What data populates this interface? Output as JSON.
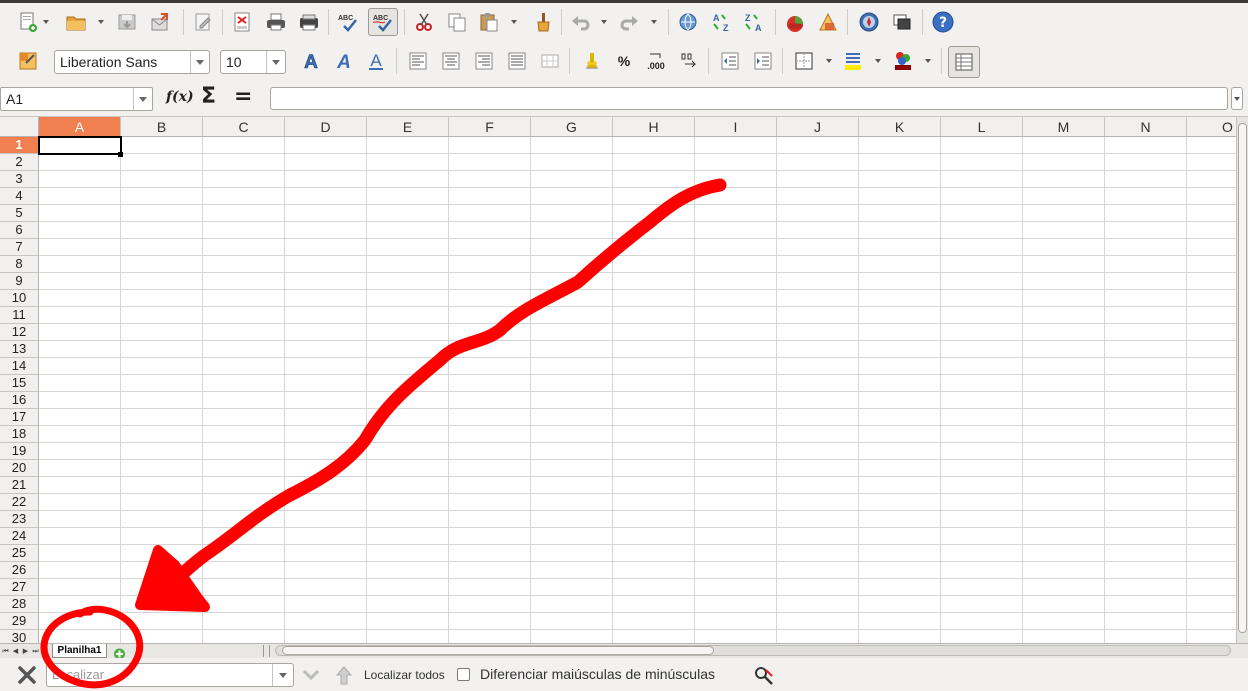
{
  "toolbar_standard": {
    "items": [
      {
        "name": "new-document",
        "icon": "new-document-icon"
      },
      {
        "name": "open",
        "icon": "folder-open-icon"
      },
      {
        "name": "save",
        "icon": "save-icon"
      },
      {
        "name": "email",
        "icon": "email-document-icon"
      },
      {
        "name": "edit-mode",
        "icon": "edit-file-icon"
      },
      {
        "name": "export-pdf",
        "icon": "pdf-icon"
      },
      {
        "name": "print",
        "icon": "printer-icon"
      },
      {
        "name": "print-direct",
        "icon": "printer-direct-icon"
      },
      {
        "name": "spellcheck",
        "icon": "spellcheck-icon"
      },
      {
        "name": "autospell",
        "icon": "autospellcheck-icon"
      },
      {
        "name": "cut",
        "icon": "scissors-icon"
      },
      {
        "name": "copy",
        "icon": "copy-icon"
      },
      {
        "name": "paste",
        "icon": "paste-icon"
      },
      {
        "name": "clone-format",
        "icon": "paintbrush-icon"
      },
      {
        "name": "undo",
        "icon": "undo-icon"
      },
      {
        "name": "redo",
        "icon": "redo-icon"
      },
      {
        "name": "hyperlink",
        "icon": "globe-link-icon"
      },
      {
        "name": "sort-asc",
        "icon": "sort-ascending-icon"
      },
      {
        "name": "sort-desc",
        "icon": "sort-descending-icon"
      },
      {
        "name": "chart",
        "icon": "chart-icon"
      },
      {
        "name": "draw",
        "icon": "draw-functions-icon"
      },
      {
        "name": "navigator",
        "icon": "navigator-icon"
      },
      {
        "name": "gallery",
        "icon": "gallery-icon"
      },
      {
        "name": "help",
        "icon": "help-icon"
      }
    ],
    "help_glyph": "?",
    "abc": "ABC",
    "sort_a": "A",
    "sort_z": "Z"
  },
  "toolbar_format": {
    "font_name": "Liberation Sans",
    "font_size": "10",
    "bold_glyph": "A",
    "italic_glyph": "A",
    "underline_glyph": "A",
    "percent": "%",
    "decimal": ".000",
    "accent_color": "#f08050"
  },
  "formula_bar": {
    "name_box": "A1",
    "fx_label": "f(x)",
    "sum_glyph": "Σ",
    "equals_glyph": "=",
    "formula_value": ""
  },
  "grid": {
    "columns": [
      "A",
      "B",
      "C",
      "D",
      "E",
      "F",
      "G",
      "H",
      "I",
      "J",
      "K",
      "L",
      "M",
      "N",
      "O"
    ],
    "rows": [
      "1",
      "2",
      "3",
      "4",
      "5",
      "6",
      "7",
      "8",
      "9",
      "10",
      "11",
      "12",
      "13",
      "14",
      "15",
      "16",
      "17",
      "18",
      "19",
      "20",
      "21",
      "22",
      "23",
      "24",
      "25",
      "26",
      "27",
      "28",
      "29",
      "30"
    ],
    "selected_cell": "A1"
  },
  "sheet_tabs": {
    "tabs": [
      {
        "label": "Planilha1",
        "active": true
      }
    ],
    "add_icon": "add-sheet-icon"
  },
  "find_bar": {
    "placeholder": "Localizar",
    "find_all": "Localizar todos",
    "match_case": "Diferenciar maiúsculas de minúsculas",
    "match_case_checked": false
  },
  "annotation": {
    "color": "#ff0000",
    "shape": "arrow-and-circle"
  }
}
